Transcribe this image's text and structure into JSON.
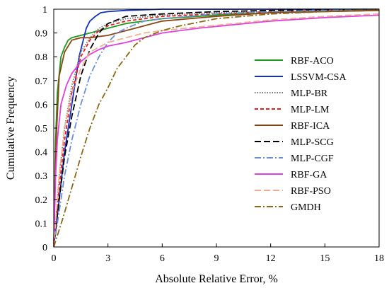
{
  "chart_data": {
    "type": "line",
    "title": "",
    "xlabel": "Absolute Relative Error, %",
    "ylabel": "Cumulative Frequency",
    "xlim": [
      0,
      18
    ],
    "ylim": [
      0,
      1
    ],
    "xticks": [
      0,
      3,
      6,
      9,
      12,
      15,
      18
    ],
    "yticks": [
      0,
      0.1,
      0.2,
      0.3,
      0.4,
      0.5,
      0.6,
      0.7,
      0.8,
      0.9,
      1
    ],
    "grid": false,
    "legend_position": "right",
    "series": [
      {
        "name": "RBF-ACO",
        "color": "#1f9a1f",
        "dash": "solid",
        "x": [
          0,
          0.1,
          0.2,
          0.4,
          0.6,
          0.8,
          1.0,
          1.5,
          2.0,
          3.0,
          4.0,
          6.0,
          9.0,
          12.0,
          15.0,
          18.0
        ],
        "y": [
          0,
          0.45,
          0.65,
          0.8,
          0.84,
          0.87,
          0.88,
          0.89,
          0.9,
          0.92,
          0.94,
          0.96,
          0.975,
          0.985,
          0.99,
          0.995
        ]
      },
      {
        "name": "LSSVM-CSA",
        "color": "#1030c8",
        "dash": "solid",
        "x": [
          0,
          0.3,
          0.6,
          1.0,
          1.4,
          1.8,
          2.0,
          2.3,
          2.6,
          3.0,
          4.0,
          6.0,
          9.0,
          18.0
        ],
        "y": [
          0,
          0.2,
          0.4,
          0.6,
          0.8,
          0.92,
          0.95,
          0.97,
          0.985,
          0.99,
          0.995,
          1.0,
          1.0,
          1.0
        ]
      },
      {
        "name": "MLP-BR",
        "color": "#777777",
        "dash": "dot",
        "x": [
          0,
          0.3,
          0.6,
          1.0,
          1.5,
          2.0,
          2.5,
          3.0,
          4.0,
          6.0,
          9.0,
          12.0,
          18.0
        ],
        "y": [
          0,
          0.3,
          0.5,
          0.68,
          0.82,
          0.88,
          0.92,
          0.94,
          0.96,
          0.975,
          0.985,
          0.99,
          1.0
        ]
      },
      {
        "name": "MLP-LM",
        "color": "#e02020",
        "dash": "dash",
        "x": [
          0,
          0.3,
          0.6,
          1.0,
          1.5,
          2.0,
          2.5,
          3.0,
          4.0,
          6.0,
          9.0,
          12.0,
          18.0
        ],
        "y": [
          0,
          0.25,
          0.45,
          0.65,
          0.8,
          0.87,
          0.91,
          0.93,
          0.95,
          0.97,
          0.98,
          0.99,
          1.0
        ]
      },
      {
        "name": "RBF-ICA",
        "color": "#8b4513",
        "dash": "solid",
        "x": [
          0,
          0.1,
          0.3,
          0.6,
          1.0,
          1.5,
          2.0,
          2.5,
          3.0,
          3.5,
          4.0,
          5.0,
          6.0,
          9.0,
          12.0,
          15.0,
          18.0
        ],
        "y": [
          0,
          0.4,
          0.72,
          0.82,
          0.87,
          0.88,
          0.88,
          0.885,
          0.89,
          0.9,
          0.91,
          0.93,
          0.95,
          0.97,
          0.985,
          0.99,
          0.995
        ]
      },
      {
        "name": "MLP-SCG",
        "color": "#000000",
        "dash": "longdash",
        "x": [
          0,
          0.3,
          0.6,
          1.0,
          1.5,
          2.0,
          2.5,
          3.0,
          4.0,
          6.0,
          9.0,
          12.0,
          18.0
        ],
        "y": [
          0,
          0.2,
          0.38,
          0.55,
          0.72,
          0.83,
          0.9,
          0.94,
          0.97,
          0.98,
          0.99,
          0.995,
          1.0
        ]
      },
      {
        "name": "MLP-CGF",
        "color": "#6a8fd8",
        "dash": "dashdot",
        "x": [
          0,
          0.3,
          0.6,
          1.0,
          1.5,
          2.0,
          2.5,
          3.0,
          3.5,
          4.0,
          5.0,
          6.0,
          9.0,
          12.0,
          18.0
        ],
        "y": [
          0,
          0.15,
          0.3,
          0.45,
          0.6,
          0.72,
          0.8,
          0.86,
          0.9,
          0.92,
          0.95,
          0.96,
          0.98,
          0.99,
          1.0
        ]
      },
      {
        "name": "RBF-GA",
        "color": "#e040e0",
        "dash": "solid",
        "x": [
          0,
          0.1,
          0.2,
          0.4,
          0.7,
          1.0,
          1.5,
          2.0,
          2.5,
          3.0,
          4.0,
          5.0,
          6.0,
          8.0,
          10.0,
          12.0,
          15.0,
          18.0
        ],
        "y": [
          0,
          0.3,
          0.45,
          0.6,
          0.68,
          0.73,
          0.78,
          0.81,
          0.83,
          0.845,
          0.86,
          0.88,
          0.9,
          0.92,
          0.935,
          0.95,
          0.965,
          0.975
        ]
      },
      {
        "name": "RBF-PSO",
        "color": "#f0b090",
        "dash": "longdash",
        "x": [
          0,
          0.3,
          0.6,
          1.0,
          1.5,
          2.0,
          3.0,
          4.0,
          5.0,
          6.0,
          8.0,
          10.0,
          12.0,
          15.0,
          18.0
        ],
        "y": [
          0,
          0.3,
          0.5,
          0.65,
          0.75,
          0.82,
          0.86,
          0.88,
          0.9,
          0.91,
          0.925,
          0.94,
          0.955,
          0.97,
          0.98
        ]
      },
      {
        "name": "GMDH",
        "color": "#8b6914",
        "dash": "dashdot",
        "x": [
          0,
          0.5,
          1.0,
          1.5,
          2.0,
          2.5,
          3.0,
          3.5,
          4.0,
          4.5,
          5.0,
          6.0,
          7.0,
          9.0,
          12.0,
          15.0,
          18.0
        ],
        "y": [
          0,
          0.12,
          0.25,
          0.38,
          0.5,
          0.6,
          0.67,
          0.75,
          0.8,
          0.85,
          0.88,
          0.91,
          0.93,
          0.96,
          0.98,
          0.99,
          1.0
        ]
      }
    ]
  }
}
